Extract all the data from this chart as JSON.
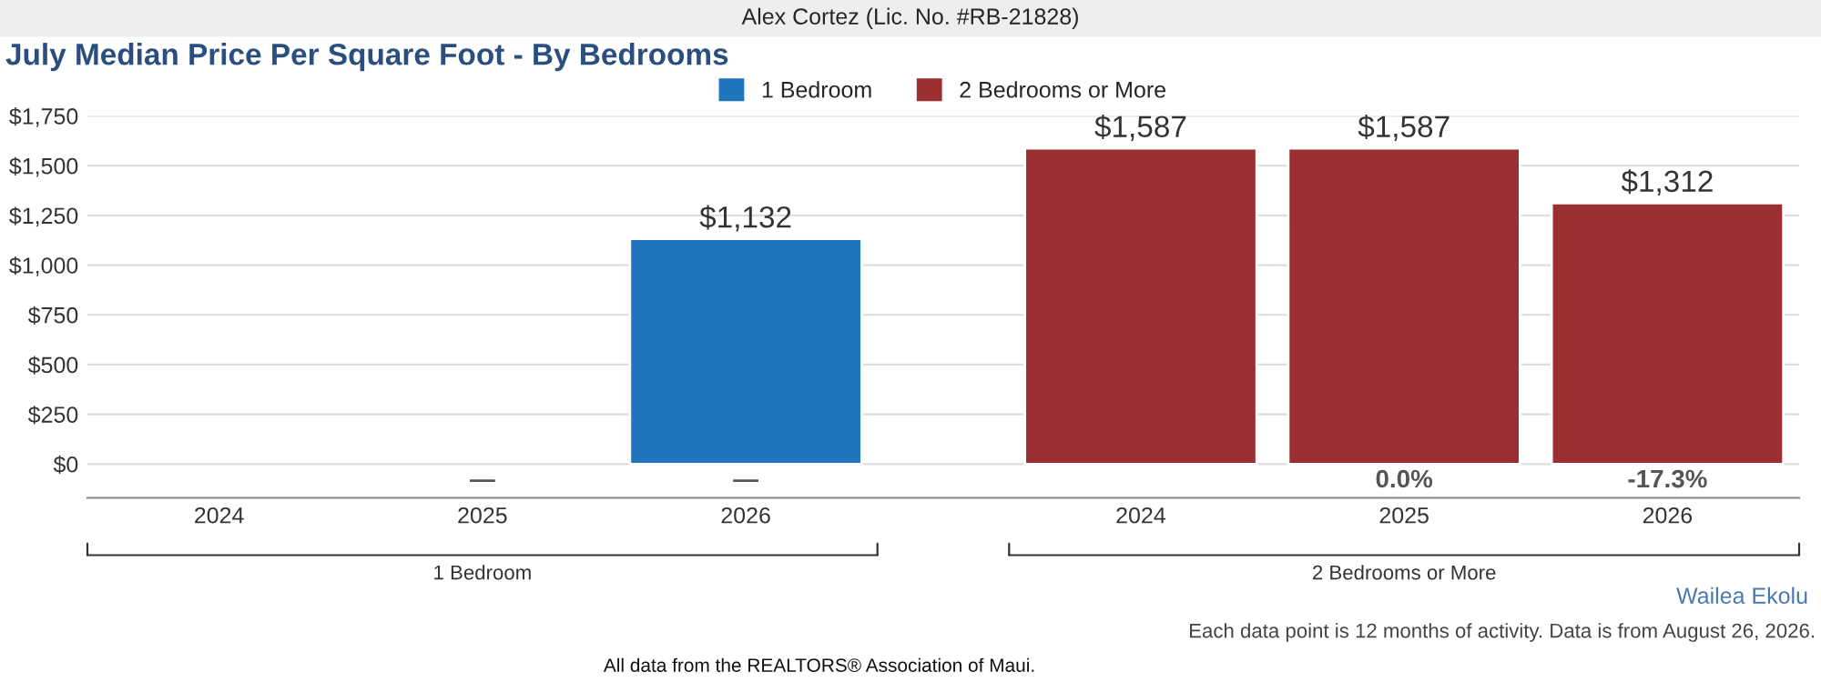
{
  "chart_data": {
    "type": "bar",
    "title": "July Median Price Per Square Foot - By Bedrooms",
    "categories": [
      "2024",
      "2025",
      "2026",
      "2024",
      "2025",
      "2026"
    ],
    "series": [
      {
        "name": "1 Bedroom",
        "color": "#1f74bb",
        "values": [
          null,
          null,
          1132,
          null,
          null,
          null
        ],
        "value_labels": [
          null,
          null,
          "$1,132",
          null,
          null,
          null
        ]
      },
      {
        "name": "2 Bedrooms or More",
        "color": "#9b2e30",
        "values": [
          null,
          null,
          null,
          1587,
          1587,
          1312
        ],
        "value_labels": [
          null,
          null,
          null,
          "$1,587",
          "$1,587",
          "$1,312"
        ]
      }
    ],
    "ylim": [
      -170,
      1750
    ],
    "yticks": [
      {
        "value": 0,
        "label": "$0"
      },
      {
        "value": 250,
        "label": "$250"
      },
      {
        "value": 500,
        "label": "$500"
      },
      {
        "value": 750,
        "label": "$750"
      },
      {
        "value": 1000,
        "label": "$1,000"
      },
      {
        "value": 1250,
        "label": "$1,250"
      },
      {
        "value": 1500,
        "label": "$1,500"
      },
      {
        "value": 1750,
        "label": "$1,750"
      }
    ],
    "grid": "y",
    "legend": "top",
    "annotations": [
      "Alex Cortez (Lic. No. #RB-21828)",
      "1 Bedroom",
      "2 Bedrooms or More",
      "—",
      "—",
      "0.0%",
      "-17.3%",
      "Wailea Ekolu",
      "Each data point is 12 months of activity. Data is from August 26, 2026.",
      "All data from the REALTORS® Association of Maui."
    ]
  }
}
